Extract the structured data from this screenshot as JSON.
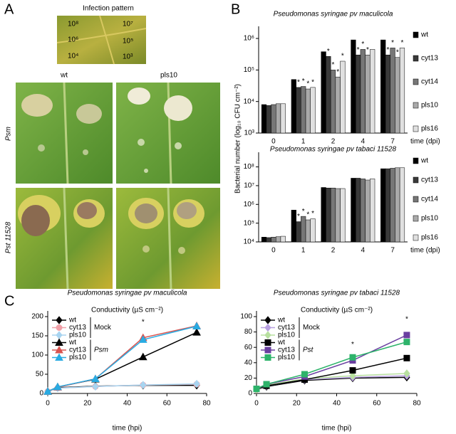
{
  "panel_labels": [
    "A",
    "B",
    "C"
  ],
  "panel_a": {
    "title": "Infection pattern",
    "dilutions": [
      "10⁸",
      "10⁷",
      "10⁶",
      "10⁵",
      "10⁴",
      "10³"
    ],
    "columns": [
      "wt",
      "pls10"
    ],
    "rows": [
      "Psm",
      "Pst 11528"
    ]
  },
  "chart_data": [
    {
      "type": "bar",
      "title": "Pseudomonas syringae pv maculicola",
      "ylabel": "Bacterial number (log₁₀ CFU cm⁻²)",
      "xlabel": "time (dpi)",
      "yscale": "log",
      "categories": [
        "0",
        "1",
        "2",
        "4",
        "7"
      ],
      "ylim": [
        1000,
        1600000
      ],
      "yticks": [
        {
          "value": 1000,
          "label": "10³"
        },
        {
          "value": 10000,
          "label": "10⁴"
        },
        {
          "value": 100000,
          "label": "10⁵"
        },
        {
          "value": 1000000,
          "label": "10⁶"
        }
      ],
      "series": [
        {
          "name": "wt",
          "color": "#000000",
          "values": [
            8000,
            50000,
            380000,
            900000,
            900000
          ],
          "significance": [
            null,
            null,
            null,
            null,
            null
          ]
        },
        {
          "name": "cyt13",
          "color": "#3a3a3a",
          "values": [
            7500,
            28000,
            270000,
            300000,
            300000
          ],
          "significance": [
            null,
            "*",
            "*",
            "*",
            "*"
          ]
        },
        {
          "name": "cyt14",
          "color": "#777777",
          "values": [
            8000,
            30000,
            100000,
            450000,
            500000
          ],
          "significance": [
            null,
            "*",
            "*",
            "*",
            "*"
          ]
        },
        {
          "name": "pls10",
          "color": "#aaaaaa",
          "values": [
            8500,
            25000,
            60000,
            300000,
            250000
          ],
          "significance": [
            null,
            "*",
            "*",
            "*",
            "*"
          ]
        },
        {
          "name": "pls16",
          "color": "#e0e0e0",
          "values": [
            8500,
            28000,
            190000,
            450000,
            500000
          ],
          "significance": [
            null,
            "*",
            "*",
            null,
            "*"
          ]
        }
      ]
    },
    {
      "type": "bar",
      "title": "Pseudomonas syringae pv tabaci 11528",
      "xlabel": "time (dpi)",
      "yscale": "log",
      "categories": [
        "0",
        "1",
        "2",
        "4",
        "7"
      ],
      "ylim": [
        10000,
        300000000
      ],
      "yticks": [
        {
          "value": 10000,
          "label": "10⁴"
        },
        {
          "value": 100000,
          "label": "10⁵"
        },
        {
          "value": 1000000,
          "label": "10⁶"
        },
        {
          "value": 10000000,
          "label": "10⁷"
        },
        {
          "value": 100000000,
          "label": "10⁸"
        }
      ],
      "series": [
        {
          "name": "wt",
          "color": "#000000",
          "values": [
            18000,
            500000,
            8000000,
            25000000,
            80000000
          ],
          "significance": [
            null,
            null,
            null,
            null,
            null
          ]
        },
        {
          "name": "cyt13",
          "color": "#3a3a3a",
          "values": [
            17000,
            120000,
            7500000,
            25000000,
            80000000
          ],
          "significance": [
            null,
            "*",
            null,
            null,
            null
          ]
        },
        {
          "name": "cyt14",
          "color": "#777777",
          "values": [
            18000,
            230000,
            7500000,
            23000000,
            85000000
          ],
          "significance": [
            null,
            "*",
            null,
            null,
            null
          ]
        },
        {
          "name": "pls10",
          "color": "#aaaaaa",
          "values": [
            19000,
            150000,
            7000000,
            20000000,
            90000000
          ],
          "significance": [
            null,
            "*",
            null,
            null,
            null
          ]
        },
        {
          "name": "pls16",
          "color": "#e0e0e0",
          "values": [
            20000,
            170000,
            7000000,
            23000000,
            90000000
          ],
          "significance": [
            null,
            "*",
            null,
            null,
            null
          ]
        }
      ]
    },
    {
      "type": "line",
      "title": "Pseudomonas syringae pv maculicola",
      "subtitle": "Conductivity (µS cm⁻²)",
      "xlabel": "time (hpi)",
      "x": [
        0,
        5,
        24,
        48,
        75
      ],
      "xlim": [
        0,
        80
      ],
      "xticks": [
        0,
        20,
        40,
        60,
        80
      ],
      "ylim": [
        0,
        200
      ],
      "yticks": [
        0,
        50,
        100,
        150,
        200
      ],
      "legend_groups": [
        "Mock",
        "Psm"
      ],
      "series": [
        {
          "name": "wt",
          "color": "#000000",
          "marker": "diamond",
          "values": [
            5,
            15,
            19,
            21,
            21
          ]
        },
        {
          "name": "cyt13",
          "color": "#f0a0a8",
          "marker": "circle",
          "values": [
            5,
            14,
            18,
            22,
            24
          ]
        },
        {
          "name": "pls10",
          "color": "#a8d4f0",
          "marker": "diamond",
          "values": [
            5,
            14,
            18,
            22,
            25
          ]
        },
        {
          "name": "wt",
          "color": "#000000",
          "marker": "triangle",
          "values": [
            5,
            17,
            37,
            95,
            159
          ]
        },
        {
          "name": "cyt13",
          "color": "#d9534f",
          "marker": "triangle",
          "values": [
            5,
            16,
            38,
            145,
            176
          ],
          "significance": [
            null,
            null,
            null,
            "*",
            null
          ]
        },
        {
          "name": "pls10",
          "color": "#29abe2",
          "marker": "triangle",
          "values": [
            5,
            17,
            38,
            140,
            175
          ]
        }
      ]
    },
    {
      "type": "line",
      "title": "Pseudomonas syringae pv tabaci 11528",
      "subtitle": "Conductivity (µS cm⁻²)",
      "xlabel": "time (hpi)",
      "x": [
        0,
        5,
        24,
        48,
        75
      ],
      "xlim": [
        0,
        80
      ],
      "xticks": [
        0,
        20,
        40,
        60,
        80
      ],
      "ylim": [
        0,
        100
      ],
      "yticks": [
        0,
        20,
        40,
        60,
        80,
        100
      ],
      "legend_groups": [
        "Mock",
        "Pst"
      ],
      "series": [
        {
          "name": "wt",
          "color": "#000000",
          "marker": "diamond",
          "values": [
            5,
            9,
            17,
            20,
            21
          ]
        },
        {
          "name": "cyt13",
          "color": "#b8a0e0",
          "marker": "diamond",
          "values": [
            5,
            10,
            18,
            21,
            23
          ]
        },
        {
          "name": "pls10",
          "color": "#b8e0a0",
          "marker": "diamond",
          "values": [
            5,
            11,
            19,
            23,
            26
          ]
        },
        {
          "name": "wt",
          "color": "#000000",
          "marker": "square",
          "values": [
            6,
            10,
            18,
            30,
            46
          ]
        },
        {
          "name": "cyt13",
          "color": "#6a3fa0",
          "marker": "square",
          "values": [
            6,
            12,
            22,
            43,
            76
          ],
          "significance": [
            null,
            null,
            null,
            "*",
            "*"
          ]
        },
        {
          "name": "pls10",
          "color": "#2db36a",
          "marker": "square",
          "values": [
            6,
            12,
            25,
            47,
            67
          ]
        }
      ]
    }
  ]
}
